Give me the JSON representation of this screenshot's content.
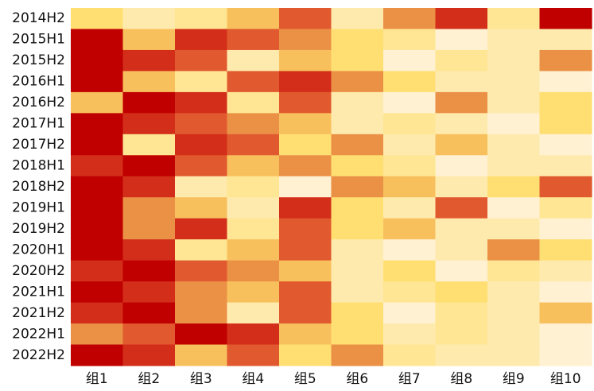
{
  "chart_data": {
    "type": "heatmap",
    "title": "",
    "xlabel": "",
    "ylabel": "",
    "columns": [
      "组1",
      "组2",
      "组3",
      "组4",
      "组5",
      "组6",
      "组7",
      "组8",
      "组9",
      "组10"
    ],
    "rows": [
      "2014H2",
      "2015H1",
      "2015H2",
      "2016H1",
      "2016H2",
      "2017H1",
      "2017H2",
      "2018H1",
      "2018H2",
      "2019H1",
      "2019H2",
      "2020H1",
      "2020H2",
      "2021H1",
      "2021H2",
      "2022H1",
      "2022H2"
    ],
    "color_scale": [
      "#FFF1D2",
      "#FFEAAE",
      "#FFE694",
      "#FFDF72",
      "#F8C05D",
      "#EB9146",
      "#E1592E",
      "#D22E1A",
      "#C00000"
    ],
    "value_range": [
      0,
      8
    ],
    "values": [
      [
        3,
        1,
        2,
        4,
        6,
        1,
        5,
        7,
        2,
        8
      ],
      [
        8,
        4,
        7,
        6,
        5,
        3,
        2,
        0,
        1,
        1
      ],
      [
        8,
        7,
        6,
        1,
        4,
        3,
        0,
        2,
        1,
        5
      ],
      [
        8,
        4,
        2,
        6,
        7,
        5,
        3,
        1,
        1,
        0
      ],
      [
        4,
        8,
        7,
        2,
        6,
        1,
        0,
        5,
        1,
        3
      ],
      [
        8,
        7,
        6,
        5,
        4,
        1,
        2,
        1,
        0,
        3
      ],
      [
        8,
        2,
        7,
        6,
        3,
        5,
        1,
        4,
        1,
        0
      ],
      [
        7,
        8,
        6,
        4,
        5,
        3,
        2,
        0,
        1,
        1
      ],
      [
        8,
        7,
        1,
        2,
        0,
        5,
        4,
        1,
        3,
        6
      ],
      [
        8,
        5,
        4,
        1,
        7,
        3,
        1,
        6,
        0,
        2
      ],
      [
        8,
        5,
        7,
        2,
        6,
        3,
        4,
        1,
        1,
        0
      ],
      [
        8,
        7,
        2,
        4,
        6,
        1,
        0,
        1,
        5,
        3
      ],
      [
        7,
        8,
        6,
        5,
        4,
        1,
        3,
        0,
        2,
        1
      ],
      [
        8,
        7,
        5,
        4,
        6,
        1,
        2,
        3,
        1,
        0
      ],
      [
        7,
        8,
        5,
        1,
        6,
        3,
        0,
        2,
        1,
        4
      ],
      [
        5,
        6,
        8,
        7,
        4,
        3,
        1,
        2,
        1,
        0
      ],
      [
        8,
        7,
        4,
        6,
        3,
        5,
        2,
        1,
        1,
        0
      ]
    ]
  }
}
